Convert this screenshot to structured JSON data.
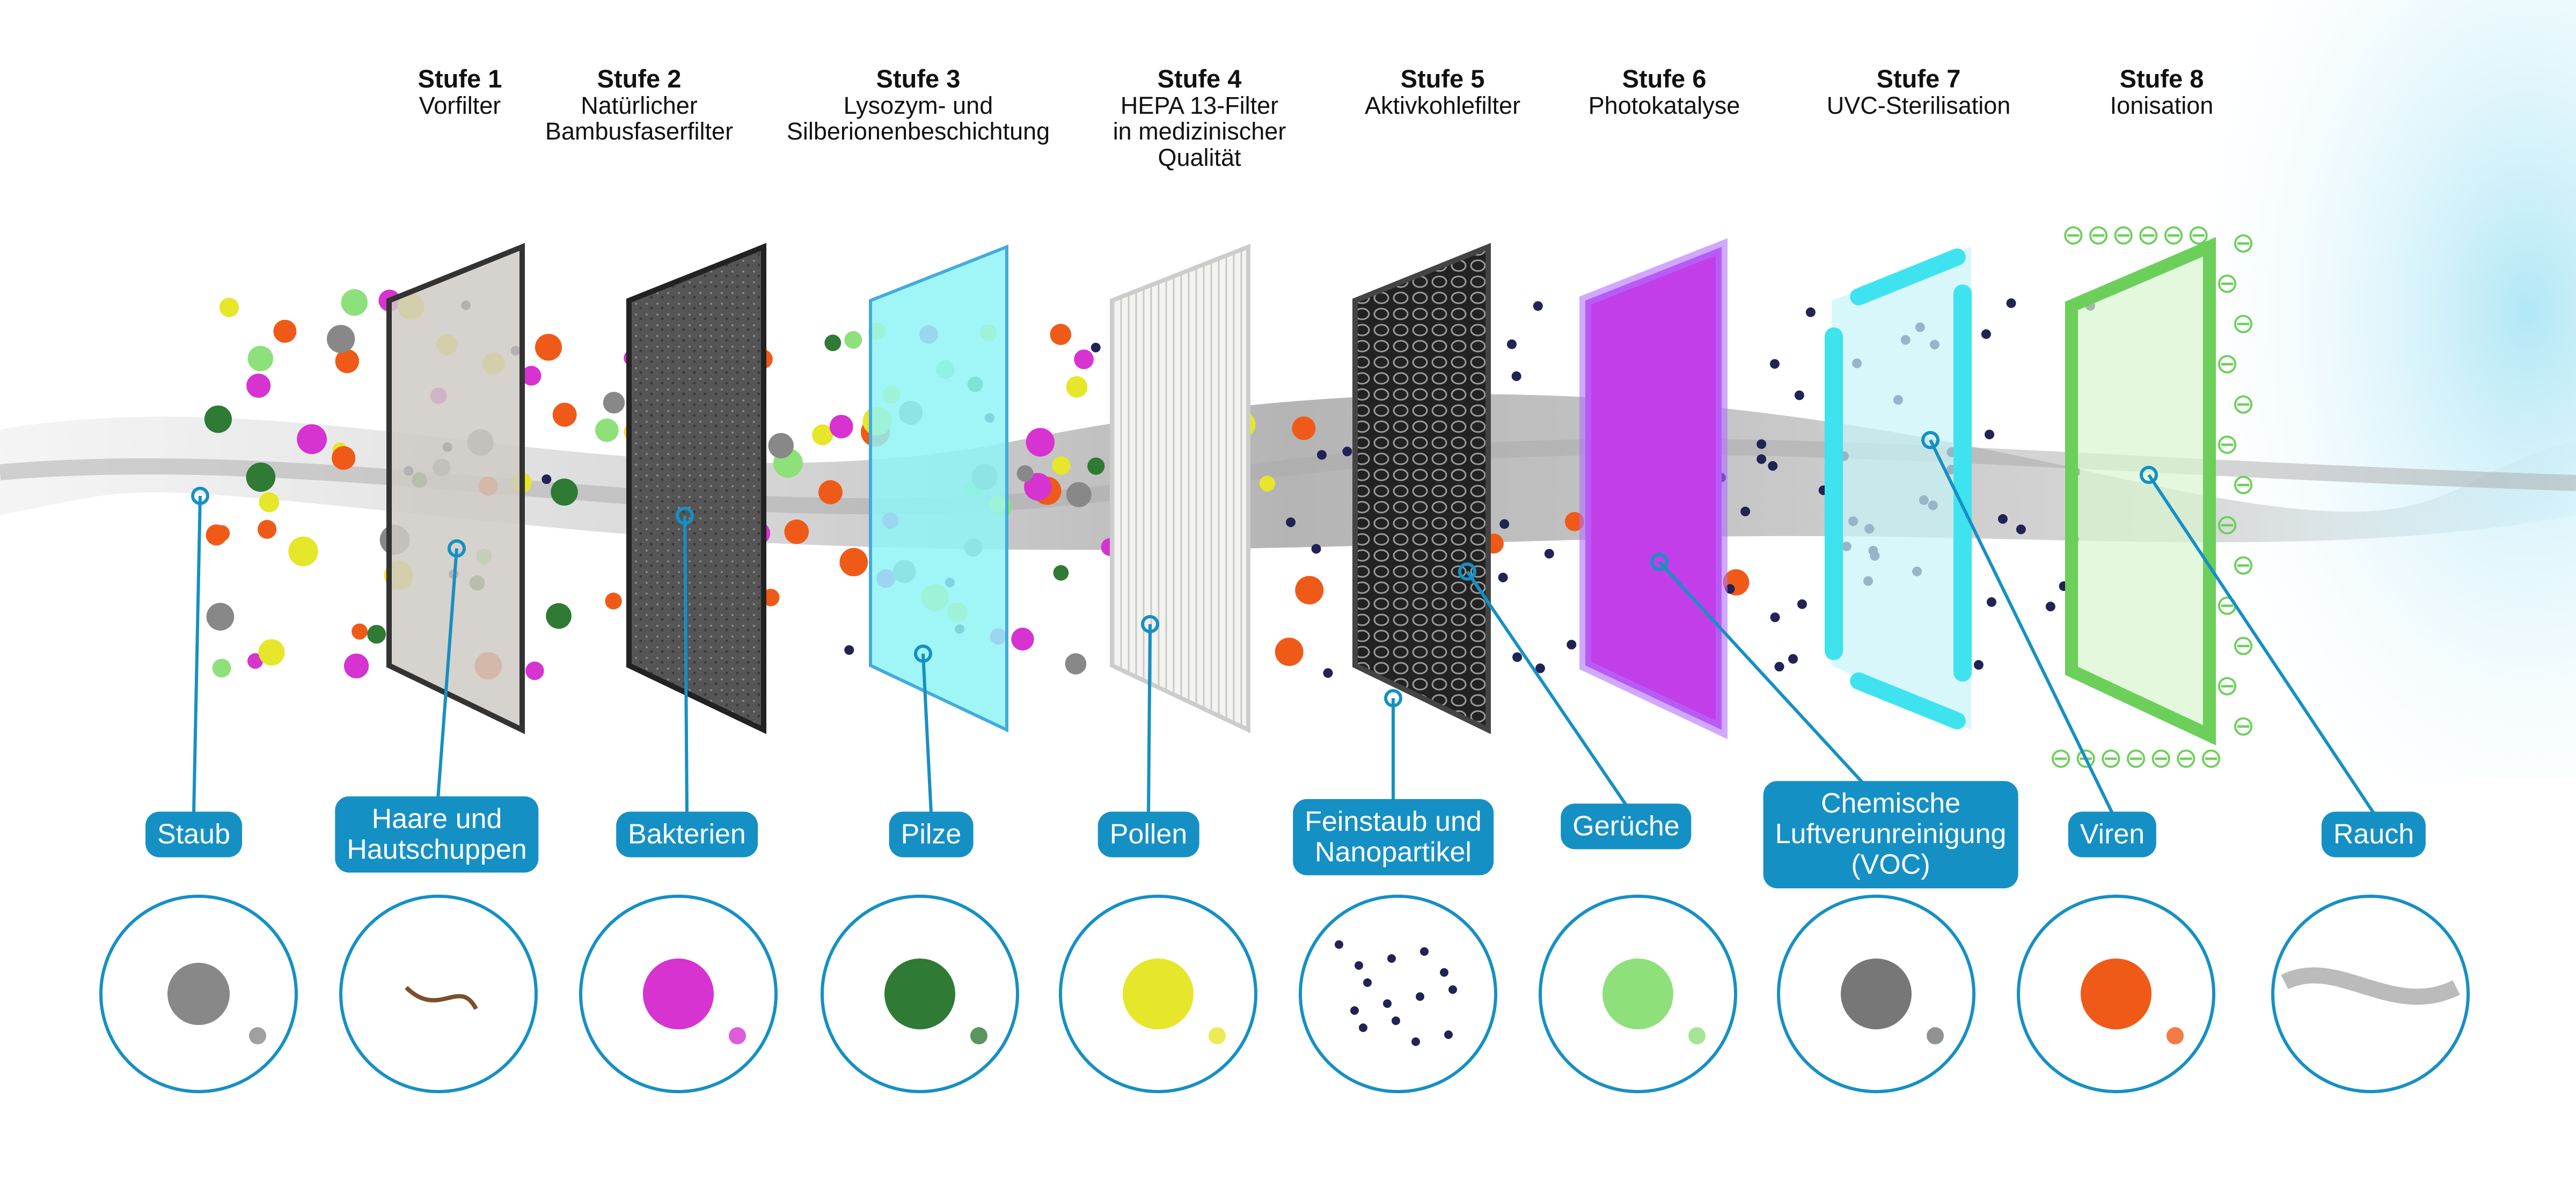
{
  "stages": [
    {
      "num": "Stufe 1",
      "name": "Vorfilter"
    },
    {
      "num": "Stufe 2",
      "name": "Natürlicher\nBambusfaserfilter"
    },
    {
      "num": "Stufe 3",
      "name": "Lysozym- und\nSilberionenbeschichtung"
    },
    {
      "num": "Stufe 4",
      "name": "HEPA 13-Filter\nin medizinischer\nQualität"
    },
    {
      "num": "Stufe 5",
      "name": "Aktivkohlefilter"
    },
    {
      "num": "Stufe 6",
      "name": "Photokatalyse"
    },
    {
      "num": "Stufe 7",
      "name": "UVC-Sterilisation"
    },
    {
      "num": "Stufe 8",
      "name": "Ionisation"
    }
  ],
  "pollutants": [
    "Staub",
    "Haare und\nHautschuppen",
    "Bakterien",
    "Pilze",
    "Pollen",
    "Feinstaub und\nNanopartikel",
    "Gerüche",
    "Chemische\nLuftverunreinigung\n(VOC)",
    "Viren",
    "Rauch"
  ],
  "colors": {
    "label_bg": "#1590c4",
    "prefilter": "#cfcac4",
    "bamboo": "#4a4a4a",
    "coating": "#8ff3f6",
    "hepa": "#f1f1ee",
    "carbon": "#2a2a2a",
    "photocatalysis": "#c23ee8",
    "uvc": "#3fe3ef",
    "ionisation": "#6ccf5a"
  },
  "ion_symbol": "⊖"
}
